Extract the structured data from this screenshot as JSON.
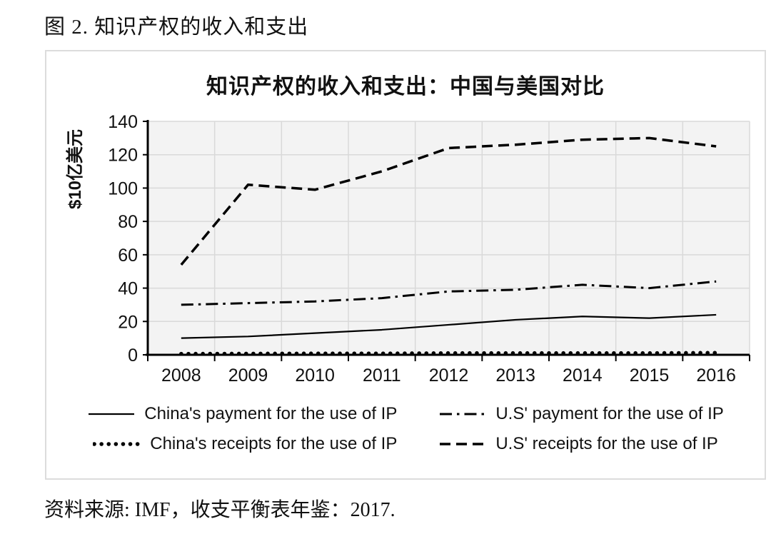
{
  "page": {
    "figure_title": "图 2. 知识产权的收入和支出",
    "source_note": "资料来源: IMF，收支平衡表年鉴：2017."
  },
  "chart_data": {
    "type": "line",
    "title": "知识产权的收入和支出：中国与美国对比",
    "ylabel": "$10亿美元",
    "xlabel": "",
    "categories": [
      "2008",
      "2009",
      "2010",
      "2011",
      "2012",
      "2013",
      "2014",
      "2015",
      "2016"
    ],
    "ylim": [
      0,
      140
    ],
    "ytick_step": 20,
    "yticks": [
      0,
      20,
      40,
      60,
      80,
      100,
      120,
      140
    ],
    "grid": true,
    "legend_position": "bottom",
    "series": [
      {
        "name": "China's payment for the use of IP",
        "style": "solid",
        "values": [
          10,
          11,
          13,
          15,
          18,
          21,
          23,
          22,
          24
        ]
      },
      {
        "name": "U.S' payment for the use of IP",
        "style": "dashdot",
        "values": [
          30,
          31,
          32,
          34,
          38,
          39,
          42,
          40,
          44
        ]
      },
      {
        "name": "China's receipts for the use of IP",
        "style": "dotted",
        "values": [
          0.6,
          0.7,
          0.8,
          0.8,
          1,
          1,
          1,
          1,
          1.2
        ]
      },
      {
        "name": "U.S' receipts for the use of IP",
        "style": "dashed",
        "values": [
          54,
          102,
          99,
          110,
          124,
          126,
          129,
          130,
          125
        ]
      }
    ],
    "legend_rows": [
      [
        0,
        1
      ],
      [
        2,
        3
      ]
    ],
    "colors": {
      "line": "#000000",
      "plot_bg": "#f3f3f3",
      "grid": "#d9d9d9",
      "box_border": "#dcdcdc",
      "text": "#111111"
    }
  }
}
